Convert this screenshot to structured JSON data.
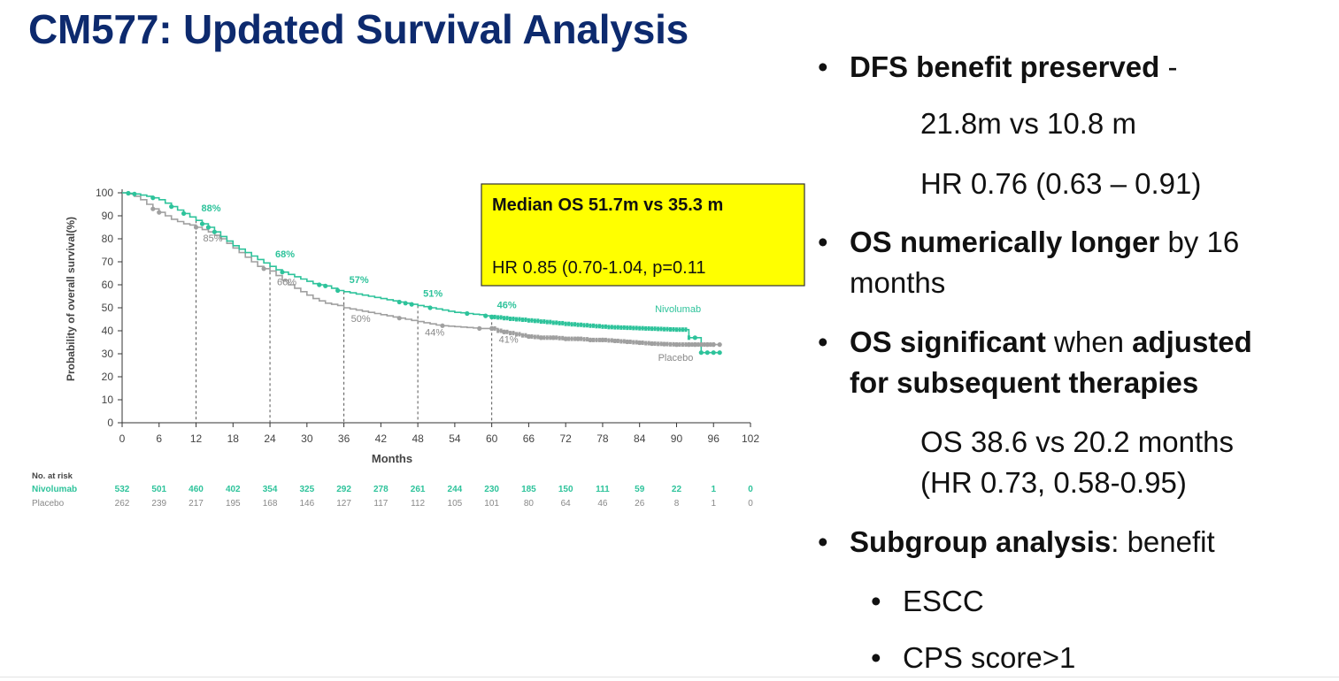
{
  "slide": {
    "title": "CM577: Updated Survival Analysis"
  },
  "callout": {
    "line1": "Median OS 51.7m vs 35.3 m",
    "line2": "HR 0.85 (0.70-1.04, p=0.11",
    "bg": "#ffff00"
  },
  "bullets": {
    "b1_bold": "DFS benefit preserved",
    "b1_rest": " -",
    "b1_sub1": "21.8m vs 10.8 m",
    "b1_sub2": "HR 0.76 (0.63 – 0.91)",
    "b2_bold": "OS numerically longer",
    "b2_rest": " by 16",
    "b2_line2": "months",
    "b3_bold1": "OS significant",
    "b3_mid": " when ",
    "b3_bold2": "adjusted",
    "b3_line2": "for subsequent therapies",
    "b3_sub1": "OS 38.6 vs 20.2 months",
    "b3_sub2": "(HR 0.73, 0.58-0.95)",
    "b4_bold": "Subgroup analysis",
    "b4_rest": ": benefit",
    "b4_sub1": "ESCC",
    "b4_sub2": "CPS score>1",
    "bullet_char": "•"
  },
  "chart_data": {
    "type": "line",
    "ylabel": "Probability of overall survival(%)",
    "xlabel": "Months",
    "xlim": [
      0,
      102
    ],
    "ylim": [
      0,
      100
    ],
    "x_ticks": [
      0,
      6,
      12,
      18,
      24,
      30,
      36,
      42,
      48,
      54,
      60,
      66,
      72,
      78,
      84,
      90,
      96,
      102
    ],
    "y_ticks": [
      0,
      10,
      20,
      30,
      40,
      50,
      60,
      70,
      80,
      90,
      100
    ],
    "colors": {
      "nivolumab": "#2ec39b",
      "placebo": "#a0a0a0",
      "dashed": "#555555"
    },
    "series": [
      {
        "name": "Nivolumab",
        "x": [
          0,
          1,
          2,
          3,
          4,
          5,
          6,
          7,
          8,
          9,
          10,
          11,
          12,
          13,
          14,
          15,
          16,
          17,
          18,
          19,
          20,
          21,
          22,
          23,
          24,
          25,
          26,
          27,
          28,
          29,
          30,
          31,
          32,
          33,
          34,
          35,
          36,
          37,
          38,
          39,
          40,
          41,
          42,
          43,
          44,
          45,
          46,
          47,
          48,
          49,
          50,
          51,
          52,
          53,
          54,
          55,
          56,
          57,
          58,
          59,
          60,
          61,
          62,
          63,
          64,
          65,
          66,
          67,
          68,
          69,
          70,
          71,
          72,
          73,
          74,
          75,
          76,
          77,
          78,
          79,
          80,
          81,
          82,
          83,
          84,
          85,
          86,
          87,
          88,
          89,
          90,
          91,
          92,
          93,
          94,
          95,
          96,
          97
        ],
        "y": [
          100,
          99.8,
          99.5,
          99,
          98.5,
          97.8,
          97,
          95.5,
          94,
          92.5,
          91,
          89.5,
          88,
          86.5,
          85,
          83,
          81,
          79,
          77,
          75.5,
          74,
          72.5,
          71,
          69.5,
          68,
          66.5,
          65.5,
          64.5,
          63.5,
          62.5,
          61.5,
          60.5,
          60,
          59.5,
          58.5,
          57.5,
          57,
          56.5,
          56,
          55.5,
          55,
          54.5,
          54,
          53.5,
          53,
          52.5,
          52,
          51.5,
          51,
          50.5,
          50,
          49.5,
          49,
          48.5,
          48,
          47.8,
          47.5,
          47.2,
          47,
          46.5,
          46,
          45.8,
          45.5,
          45.2,
          45,
          44.8,
          44.5,
          44.3,
          44,
          43.8,
          43.5,
          43.3,
          43,
          42.8,
          42.6,
          42.4,
          42.2,
          42,
          41.8,
          41.6,
          41.5,
          41.4,
          41.3,
          41.2,
          41.1,
          41,
          40.9,
          40.8,
          40.7,
          40.6,
          40.5,
          40.5,
          37,
          37,
          30.5,
          30.5,
          30.5,
          30.5
        ],
        "censor_x": [
          1,
          2,
          5,
          8,
          10,
          13,
          14,
          15,
          26,
          32,
          33,
          35,
          45,
          46,
          47,
          50,
          56,
          59,
          60,
          93,
          94,
          95,
          96,
          97
        ]
      },
      {
        "name": "Placebo",
        "x": [
          0,
          1,
          2,
          3,
          4,
          5,
          6,
          7,
          8,
          9,
          10,
          11,
          12,
          13,
          14,
          15,
          16,
          17,
          18,
          19,
          20,
          21,
          22,
          23,
          24,
          25,
          26,
          27,
          28,
          29,
          30,
          31,
          32,
          33,
          34,
          35,
          36,
          37,
          38,
          39,
          40,
          41,
          42,
          43,
          44,
          45,
          46,
          47,
          48,
          49,
          50,
          51,
          52,
          53,
          54,
          55,
          56,
          57,
          58,
          59,
          60,
          61,
          62,
          63,
          64,
          65,
          66,
          67,
          68,
          69,
          70,
          71,
          72,
          73,
          74,
          75,
          76,
          77,
          78,
          79,
          80,
          81,
          82,
          83,
          84,
          85,
          86,
          87,
          88,
          89,
          90,
          91,
          92,
          93,
          94,
          95,
          96,
          97
        ],
        "y": [
          100,
          99.5,
          98.5,
          97,
          95,
          93,
          91.5,
          90,
          88.5,
          87.5,
          86.5,
          86,
          85,
          84,
          83,
          81.5,
          80,
          78,
          76,
          74,
          72,
          70,
          68,
          67,
          66,
          64,
          62,
          60,
          58.5,
          57,
          55.5,
          54,
          53,
          52,
          51.5,
          51,
          50,
          49.5,
          49,
          48.5,
          48,
          47.5,
          47,
          46.5,
          46,
          45.5,
          45,
          44.5,
          44,
          43.5,
          43,
          42.5,
          42.2,
          42,
          41.8,
          41.6,
          41.4,
          41.2,
          41,
          41,
          41,
          40,
          39.5,
          39,
          38.5,
          38,
          37.5,
          37.3,
          37,
          37,
          37,
          36.8,
          36.5,
          36.5,
          36.5,
          36.3,
          36,
          36,
          36,
          35.8,
          35.6,
          35.4,
          35.2,
          35,
          34.8,
          34.6,
          34.4,
          34.3,
          34.2,
          34.1,
          34,
          34,
          34,
          34,
          34,
          34,
          34,
          34
        ],
        "censor_x": [
          5,
          6,
          12,
          23,
          45,
          52,
          58,
          60,
          62,
          66,
          68,
          70,
          72,
          74,
          76,
          78,
          80,
          82,
          84,
          86,
          88,
          90,
          92,
          93,
          94,
          95,
          96,
          97
        ]
      }
    ],
    "milestones": [
      {
        "month": 12,
        "nivo_label": "88%",
        "placebo_label": "85%",
        "nivo": 88,
        "placebo": 85
      },
      {
        "month": 24,
        "nivo_label": "68%",
        "placebo_label": "66%",
        "nivo": 68,
        "placebo": 66
      },
      {
        "month": 36,
        "nivo_label": "57%",
        "placebo_label": "50%",
        "nivo": 57,
        "placebo": 50
      },
      {
        "month": 48,
        "nivo_label": "51%",
        "placebo_label": "44%",
        "nivo": 51,
        "placebo": 44
      },
      {
        "month": 60,
        "nivo_label": "46%",
        "placebo_label": "41%",
        "nivo": 46,
        "placebo": 41
      }
    ],
    "legend": {
      "nivolumab": "Nivolumab",
      "placebo": "Placebo"
    },
    "risk_table": {
      "header": "No. at risk",
      "rows": [
        {
          "name": "Nivolumab",
          "values": [
            "532",
            "501",
            "460",
            "402",
            "354",
            "325",
            "292",
            "278",
            "261",
            "244",
            "230",
            "185",
            "150",
            "111",
            "59",
            "22",
            "1",
            "0"
          ]
        },
        {
          "name": "Placebo",
          "values": [
            "262",
            "239",
            "217",
            "195",
            "168",
            "146",
            "127",
            "117",
            "112",
            "105",
            "101",
            "80",
            "64",
            "46",
            "26",
            "8",
            "1",
            "0"
          ]
        }
      ]
    }
  }
}
